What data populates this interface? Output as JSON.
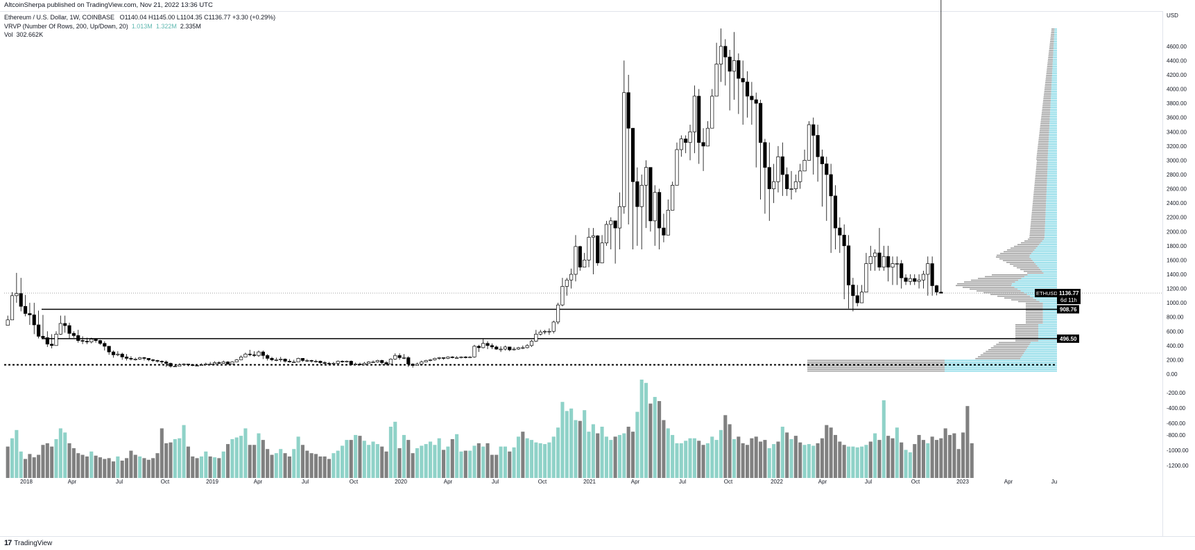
{
  "publisher": "AltcoinSherpa published on TradingView.com, Nov 21, 2022 13:36 UTC",
  "legend": {
    "symbol": "Ethereum / U.S. Dollar, 1W, COINBASE",
    "ohlc": "O1140.04  H1145.00  L1104.35  C1136.77  +3.30 (+0.29%)",
    "vrvp_label": "VRVP (Number Of Rows, 200, Up/Down, 20)",
    "vrvp_up": "1.013M",
    "vrvp_down": "1.322M",
    "vrvp_total": "2.335M",
    "vol_label": "Vol",
    "vol_value": "302.662K"
  },
  "footer": {
    "brand": "TradingView"
  },
  "colors": {
    "candle_up": "#ffffff",
    "candle_down": "#000000",
    "vol_up": "#8fd2c8",
    "vol_down": "#808080",
    "vp_up": "#86d9e6",
    "vp_down": "#9e9e9e"
  },
  "chart_data": {
    "type": "candlestick",
    "symbol": "ETHUSD",
    "interval": "1W",
    "x_ticks": [
      "2018",
      "Apr",
      "Jul",
      "Oct",
      "2019",
      "Apr",
      "Jul",
      "Oct",
      "2020",
      "Apr",
      "Jul",
      "Oct",
      "2021",
      "Apr",
      "Jul",
      "Oct",
      "2022",
      "Apr",
      "Jul",
      "Oct",
      "2023",
      "Apr",
      "Ju"
    ],
    "price_axis": {
      "unit": "USD",
      "ticks": [
        4600,
        4400,
        4200,
        4000,
        3800,
        3600,
        3400,
        3200,
        3000,
        2800,
        2600,
        2400,
        2200,
        2000,
        1800,
        1600,
        1400,
        1200,
        1000,
        800,
        600,
        400,
        200,
        0
      ],
      "range": [
        -10,
        4900
      ]
    },
    "volume_axis": {
      "ticks": [
        -200,
        -400,
        -600,
        -800,
        -1000,
        -1200
      ]
    },
    "price_labels": [
      {
        "text": "ETHUSD",
        "value": 1136.77
      },
      {
        "text": "1136.77",
        "value": 1136.77
      },
      {
        "text": "6d 11h",
        "value": 1136.77
      }
    ],
    "horizontal_levels": [
      {
        "value": 908.76,
        "label": "908.76"
      },
      {
        "value": 496.5,
        "label": "496.50"
      },
      {
        "value": 130,
        "label": ""
      }
    ],
    "weekly_closes": [
      760,
      1100,
      1130,
      950,
      850,
      830,
      690,
      530,
      510,
      420,
      400,
      560,
      710,
      680,
      570,
      540,
      470,
      460,
      450,
      490,
      470,
      430,
      390,
      310,
      270,
      280,
      240,
      220,
      210,
      210,
      230,
      220,
      200,
      190,
      180,
      170,
      150,
      110,
      110,
      130,
      140,
      130,
      120,
      120,
      130,
      140,
      140,
      160,
      150,
      170,
      140,
      170,
      200,
      240,
      280,
      270,
      260,
      310,
      260,
      220,
      200,
      200,
      210,
      180,
      170,
      170,
      220,
      190,
      190,
      180,
      180,
      160,
      150,
      140,
      150,
      180,
      170,
      180,
      130,
      140,
      130,
      150,
      170,
      170,
      190,
      160,
      140,
      210,
      260,
      230,
      230,
      140,
      120,
      140,
      170,
      190,
      200,
      220,
      230,
      220,
      240,
      230,
      230,
      240,
      230,
      240,
      390,
      370,
      430,
      400,
      380,
      350,
      350,
      380,
      340,
      350,
      370,
      370,
      400,
      460,
      560,
      590,
      600,
      600,
      730,
      970,
      1230,
      1320,
      1400,
      1790,
      1500,
      1600,
      1920,
      1940,
      1560,
      1840,
      2100,
      2150,
      2050,
      2350,
      3950,
      3450,
      2700,
      2350,
      2650,
      2900,
      2150,
      2550,
      2050,
      1950,
      2300,
      2650,
      3150,
      3300,
      3250,
      3400,
      3900,
      3250,
      3200,
      3450,
      3900,
      4350,
      4600,
      4450,
      4250,
      4400,
      4150,
      4100,
      3900,
      3850,
      3800,
      3250,
      2900,
      2600,
      2700,
      3050,
      2800,
      2600,
      2600,
      2700,
      2850,
      3000,
      3500,
      3350,
      3050,
      2950,
      2800,
      2500,
      2050,
      1950,
      1800,
      1250,
      1100,
      1000,
      1150,
      1550,
      1650,
      1700,
      1500,
      1650,
      1500,
      1550,
      1550,
      1350,
      1300,
      1340,
      1300,
      1320,
      1400,
      1550,
      1240,
      1150,
      1135
    ],
    "weekly_highs": [
      820,
      1150,
      1420,
      1350,
      1110,
      1000,
      1000,
      890,
      830,
      600,
      560,
      600,
      820,
      820,
      720,
      600,
      620,
      530,
      510,
      510,
      500,
      480,
      460,
      380,
      330,
      320,
      300,
      280,
      250,
      230,
      240,
      240,
      220,
      210,
      200,
      190,
      190,
      160,
      140,
      150,
      150,
      140,
      140,
      140,
      150,
      160,
      170,
      180,
      180,
      190,
      180,
      180,
      210,
      260,
      300,
      340,
      320,
      330,
      330,
      280,
      240,
      230,
      240,
      220,
      210,
      200,
      230,
      220,
      210,
      200,
      200,
      190,
      180,
      170,
      170,
      190,
      190,
      190,
      190,
      160,
      160,
      170,
      180,
      190,
      200,
      200,
      180,
      220,
      290,
      290,
      280,
      250,
      150,
      160,
      190,
      200,
      210,
      230,
      240,
      230,
      250,
      250,
      250,
      250,
      250,
      250,
      410,
      410,
      490,
      460,
      430,
      400,
      390,
      400,
      380,
      380,
      380,
      400,
      420,
      480,
      620,
      620,
      620,
      640,
      750,
      1000,
      1350,
      1350,
      1480,
      1950,
      1800,
      1700,
      2050,
      2050,
      1950,
      1950,
      2150,
      2200,
      2100,
      2550,
      4400,
      4200,
      3450,
      2900,
      2800,
      3000,
      2850,
      2650,
      2600,
      2250,
      2450,
      2700,
      3250,
      3350,
      3350,
      3500,
      4050,
      4000,
      3450,
      3550,
      4000,
      4650,
      4850,
      4700,
      4550,
      4800,
      4500,
      4400,
      4250,
      4100,
      3950,
      3850,
      3300,
      3250,
      2950,
      3200,
      3250,
      2900,
      2850,
      2800,
      2950,
      3150,
      3550,
      3600,
      3500,
      3150,
      3050,
      2950,
      2650,
      2200,
      2100,
      1950,
      1350,
      1250,
      1250,
      1700,
      1800,
      1750,
      2050,
      1800,
      1800,
      1650,
      1650,
      1600,
      1400,
      1400,
      1400,
      1400,
      1450,
      1650,
      1650,
      1250,
      1145
    ],
    "weekly_lows": [
      730,
      760,
      1000,
      880,
      810,
      690,
      560,
      500,
      490,
      380,
      360,
      400,
      550,
      580,
      500,
      510,
      440,
      420,
      420,
      430,
      440,
      410,
      330,
      270,
      230,
      250,
      200,
      190,
      190,
      190,
      200,
      190,
      180,
      170,
      160,
      140,
      100,
      90,
      100,
      110,
      120,
      110,
      110,
      110,
      120,
      130,
      130,
      140,
      140,
      140,
      130,
      140,
      170,
      200,
      240,
      250,
      240,
      240,
      210,
      190,
      180,
      180,
      170,
      160,
      160,
      160,
      170,
      170,
      170,
      160,
      160,
      140,
      130,
      120,
      130,
      140,
      160,
      160,
      120,
      120,
      120,
      130,
      150,
      160,
      160,
      130,
      120,
      150,
      200,
      200,
      210,
      100,
      90,
      120,
      140,
      170,
      180,
      190,
      200,
      200,
      210,
      220,
      220,
      220,
      220,
      230,
      230,
      310,
      360,
      350,
      350,
      340,
      310,
      330,
      320,
      330,
      340,
      350,
      360,
      380,
      450,
      540,
      560,
      550,
      570,
      700,
      950,
      1100,
      1200,
      1300,
      1450,
      1550,
      1500,
      1400,
      1520,
      1700,
      1800,
      1750,
      1550,
      1750,
      2250,
      2100,
      1750,
      1800,
      1750,
      2050,
      2000,
      1800,
      1750,
      1850,
      2150,
      2500,
      2800,
      3050,
      3100,
      3000,
      3100,
      2950,
      2850,
      3350,
      3550,
      3900,
      4100,
      4050,
      3700,
      3850,
      3650,
      3500,
      3600,
      3500,
      2900,
      2450,
      2250,
      2150,
      2400,
      2550,
      2500,
      2500,
      2450,
      2550,
      2600,
      2900,
      3000,
      2800,
      2700,
      2350,
      2150,
      1700,
      1750,
      1700,
      1050,
      920,
      880,
      950,
      1000,
      1380,
      1450,
      1450,
      1450,
      1450,
      1300,
      1250,
      1250,
      1200,
      1250,
      1250,
      1250,
      1200,
      1200,
      1100,
      1100,
      1104
    ],
    "weekly_volume_up": [
      0,
      1,
      1,
      1,
      0,
      0,
      0,
      0,
      0,
      0,
      0,
      1,
      1,
      1,
      0,
      0,
      0,
      0,
      0,
      1,
      0,
      0,
      0,
      0,
      0,
      1,
      0,
      0,
      0,
      0,
      1,
      0,
      0,
      0,
      0,
      0,
      0,
      0,
      1,
      1,
      1,
      0,
      0,
      0,
      1,
      1,
      0,
      1,
      0,
      1,
      0,
      1,
      1,
      1,
      1,
      0,
      0,
      1,
      0,
      0,
      0,
      1,
      1,
      0,
      0,
      1,
      1,
      0,
      0,
      0,
      0,
      0,
      0,
      0,
      1,
      1,
      1,
      1,
      0,
      1,
      0,
      1,
      1,
      1,
      1,
      0,
      0,
      1,
      1,
      0,
      1,
      0,
      0,
      1,
      1,
      1,
      1,
      1,
      1,
      0,
      1,
      0,
      1,
      1,
      0,
      1,
      1,
      0,
      1,
      0,
      0,
      0,
      1,
      1,
      0,
      1,
      1,
      0,
      1,
      1,
      1,
      1,
      1,
      1,
      1,
      1,
      1,
      1,
      1,
      1,
      0,
      1,
      1,
      1,
      0,
      1,
      1,
      1,
      0,
      1,
      1,
      0,
      0,
      1,
      1,
      1,
      0,
      1,
      0,
      0,
      1,
      1,
      1,
      1,
      1,
      1,
      1,
      0,
      0,
      1,
      1,
      1,
      1,
      0,
      0,
      1,
      0,
      0,
      0,
      0,
      0,
      0,
      0,
      1,
      1,
      0,
      1,
      0,
      1,
      0,
      0,
      1,
      1,
      1,
      0,
      0,
      0,
      0,
      0,
      0,
      0,
      1,
      1,
      1,
      1,
      1,
      0,
      1,
      0,
      1,
      0,
      0,
      1,
      0,
      1,
      1,
      0,
      0,
      0,
      1,
      0,
      0,
      0
    ],
    "weekly_volume": [
      380,
      480,
      580,
      320,
      230,
      290,
      250,
      280,
      400,
      420,
      380,
      470,
      600,
      550,
      420,
      360,
      300,
      280,
      260,
      320,
      270,
      250,
      230,
      240,
      200,
      260,
      210,
      240,
      330,
      280,
      260,
      240,
      220,
      240,
      300,
      600,
      420,
      430,
      470,
      480,
      640,
      380,
      260,
      240,
      260,
      320,
      260,
      250,
      240,
      320,
      410,
      470,
      490,
      510,
      600,
      400,
      400,
      540,
      460,
      350,
      280,
      300,
      350,
      300,
      260,
      350,
      500,
      400,
      330,
      300,
      290,
      260,
      260,
      230,
      300,
      330,
      390,
      460,
      460,
      520,
      510,
      450,
      400,
      440,
      410,
      380,
      320,
      620,
      680,
      360,
      520,
      460,
      300,
      360,
      390,
      410,
      440,
      400,
      480,
      340,
      380,
      470,
      530,
      320,
      330,
      330,
      390,
      420,
      380,
      420,
      280,
      280,
      380,
      380,
      320,
      370,
      500,
      560,
      480,
      460,
      430,
      420,
      410,
      430,
      500,
      610,
      920,
      810,
      840,
      700,
      690,
      820,
      560,
      650,
      540,
      620,
      500,
      460,
      500,
      520,
      540,
      620,
      560,
      800,
      1190,
      1150,
      900,
      980,
      930,
      700,
      600,
      520,
      420,
      420,
      450,
      480,
      480,
      450,
      400,
      420,
      500,
      460,
      580,
      760,
      650,
      470,
      500,
      420,
      400,
      480,
      500,
      440,
      460,
      360,
      410,
      440,
      620,
      550,
      470,
      510,
      430,
      400,
      410,
      390,
      420,
      480,
      640,
      610,
      520,
      440,
      400,
      380,
      380,
      370,
      380,
      400,
      440,
      540,
      460,
      940,
      510,
      480,
      610,
      430,
      340,
      310,
      410,
      520,
      460,
      420,
      500,
      460,
      480,
      600,
      520,
      540,
      350,
      550,
      870,
      420
    ],
    "volume_profile_note": "visible-range volume profile, up (teal) / down (grey) split, 200 rows"
  }
}
